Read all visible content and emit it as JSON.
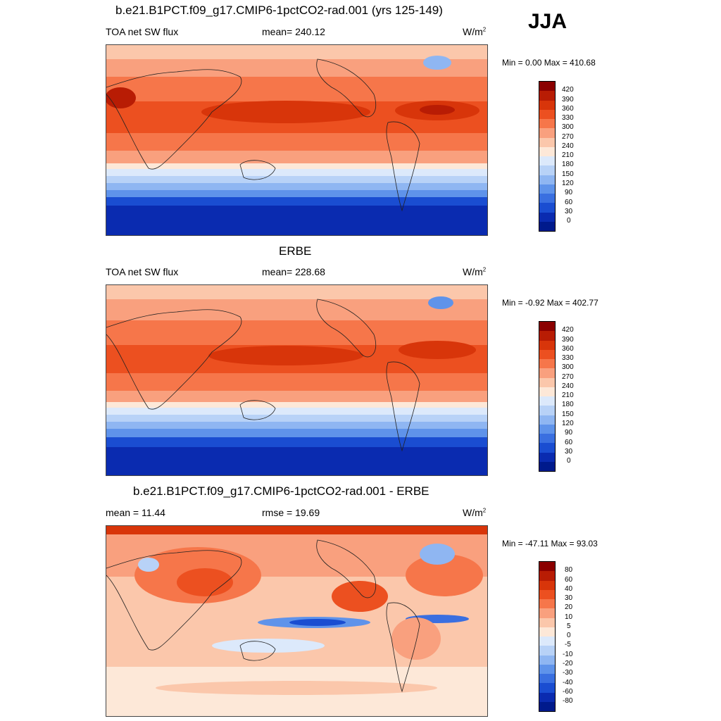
{
  "season": "JJA",
  "panels": [
    {
      "title": "b.e21.B1PCT.f09_g17.CMIP6-1pctCO2-rad.001 (yrs 125-149)",
      "left_label": "TOA net SW flux",
      "center_label": "mean= 240.12",
      "units": "W/m",
      "units_sup": "2",
      "minmax": "Min =   0.00 Max = 410.68",
      "levels": [
        "420",
        "390",
        "360",
        "330",
        "300",
        "270",
        "240",
        "210",
        "180",
        "150",
        "120",
        "90",
        "60",
        "30",
        "0"
      ],
      "colors": [
        "#8b0000",
        "#b81c04",
        "#d8350a",
        "#ec5020",
        "#f6764a",
        "#f9a07e",
        "#fbc7ab",
        "#fde8d8",
        "#dce9fb",
        "#b8d2f7",
        "#8fb6f2",
        "#5f93ea",
        "#3a6fe0",
        "#1a4dd1",
        "#0a2bb0",
        "#001a8c"
      ],
      "type": "absolute"
    },
    {
      "title": "ERBE",
      "left_label": "TOA net SW flux",
      "center_label": "mean= 228.68",
      "units": "W/m",
      "units_sup": "2",
      "minmax": "Min =  -0.92 Max = 402.77",
      "levels": [
        "420",
        "390",
        "360",
        "330",
        "300",
        "270",
        "240",
        "210",
        "180",
        "150",
        "120",
        "90",
        "60",
        "30",
        "0"
      ],
      "colors": [
        "#8b0000",
        "#b81c04",
        "#d8350a",
        "#ec5020",
        "#f6764a",
        "#f9a07e",
        "#fbc7ab",
        "#fde8d8",
        "#dce9fb",
        "#b8d2f7",
        "#8fb6f2",
        "#5f93ea",
        "#3a6fe0",
        "#1a4dd1",
        "#0a2bb0",
        "#001a8c"
      ],
      "type": "absolute"
    },
    {
      "title": "b.e21.B1PCT.f09_g17.CMIP6-1pctCO2-rad.001 - ERBE",
      "left_label": "mean =  11.44",
      "center_label": "rmse =  19.69",
      "units": "W/m",
      "units_sup": "2",
      "minmax": "Min = -47.11 Max =  93.03",
      "levels": [
        "80",
        "60",
        "40",
        "30",
        "20",
        "10",
        "5",
        "0",
        "-5",
        "-10",
        "-20",
        "-30",
        "-40",
        "-60",
        "-80"
      ],
      "colors": [
        "#8b0000",
        "#b81c04",
        "#d8350a",
        "#ec5020",
        "#f6764a",
        "#f9a07e",
        "#fbc7ab",
        "#fde8d8",
        "#dce9fb",
        "#b8d2f7",
        "#8fb6f2",
        "#5f93ea",
        "#3a6fe0",
        "#1a4dd1",
        "#0a2bb0",
        "#001a8c"
      ],
      "type": "difference"
    }
  ]
}
